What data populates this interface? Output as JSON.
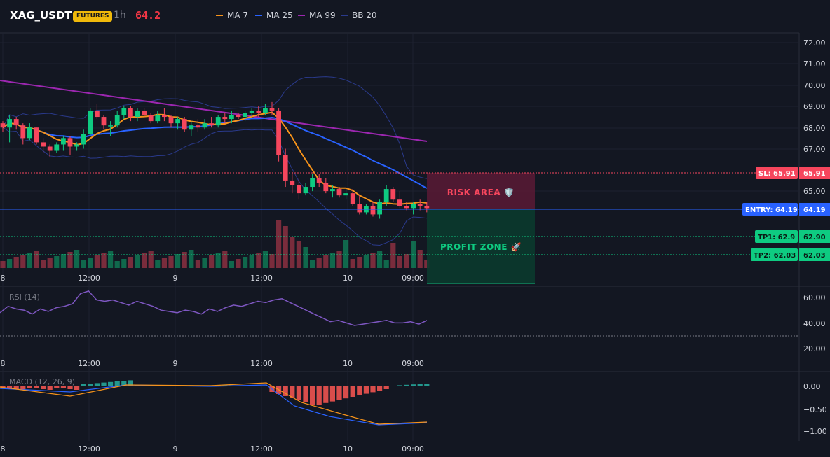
{
  "header": {
    "symbol": "XAG_USDT",
    "badge": "FUTURES",
    "timeframe": "1h",
    "last_price": "64.2",
    "legend": [
      {
        "label": "MA 7",
        "color": "#f7931a",
        "icon": "line-swatch-icon"
      },
      {
        "label": "MA 25",
        "color": "#2962ff",
        "icon": "line-swatch-icon"
      },
      {
        "label": "MA 99",
        "color": "#9c27b0",
        "icon": "line-swatch-icon"
      },
      {
        "label": "BB 20",
        "color": "#2a3a8c",
        "icon": "line-swatch-icon"
      }
    ]
  },
  "colors": {
    "up": "#0ecb81",
    "down": "#f6465d",
    "background": "#131722",
    "grid": "#1e2230",
    "sl": "#f6465d",
    "entry": "#2962ff",
    "tp": "#0ecb81"
  },
  "price_axis": {
    "ticks": [
      "72.00",
      "71.00",
      "70.00",
      "69.00",
      "68.00",
      "67.00",
      "65.00"
    ]
  },
  "time_axis": {
    "ticks": [
      "8",
      "12:00",
      "9",
      "12:00",
      "10",
      "09:00"
    ]
  },
  "levels": {
    "sl": {
      "label": "SL: 65.91",
      "value": "65.91",
      "price": 65.91
    },
    "entry": {
      "label": "ENTRY: 64.19",
      "value": "64.19",
      "price": 64.19
    },
    "tp1": {
      "label": "TP1: 62.9",
      "value": "62.90",
      "price": 62.9
    },
    "tp2": {
      "label": "TP2: 62.03",
      "value": "62.03",
      "price": 62.03
    }
  },
  "zones": {
    "risk": "RISK AREA 🛡️",
    "profit": "PROFIT ZONE 🚀"
  },
  "rsi": {
    "label": "RSI (14)",
    "ticks": [
      "60.00",
      "40.00",
      "20.00"
    ],
    "values": [
      48,
      53,
      51,
      50,
      47,
      51,
      49,
      52,
      53,
      55,
      63,
      65,
      58,
      57,
      58,
      56,
      54,
      57,
      55,
      53,
      50,
      49,
      48,
      50,
      49,
      47,
      51,
      49,
      52,
      54,
      53,
      55,
      57,
      56,
      58,
      59,
      56,
      53,
      50,
      47,
      44,
      41,
      42,
      40,
      38,
      39,
      40,
      41,
      42,
      40,
      40,
      41,
      39,
      42
    ]
  },
  "macd": {
    "label": "MACD (12, 26, 9)",
    "ticks": [
      "0.00",
      "−0.50",
      "−1.00"
    ]
  },
  "chart_data": {
    "type": "candlestick",
    "title": "XAG_USDT",
    "timeframe": "1h",
    "price_ylim": [
      64.0,
      72.2
    ],
    "x_ticks": [
      "8",
      "12:00",
      "9",
      "12:00",
      "10",
      "09:00"
    ],
    "y_ticks": [
      72.0,
      71.0,
      70.0,
      69.0,
      68.0,
      67.0,
      65.0
    ],
    "candles": [
      [
        68.2,
        68.3,
        67.8,
        68.0
      ],
      [
        68.0,
        68.6,
        67.3,
        68.4
      ],
      [
        68.4,
        68.5,
        67.9,
        68.1
      ],
      [
        68.1,
        68.2,
        67.2,
        67.5
      ],
      [
        67.5,
        68.2,
        67.4,
        68.0
      ],
      [
        68.0,
        68.0,
        67.2,
        67.3
      ],
      [
        67.3,
        67.5,
        66.8,
        67.1
      ],
      [
        67.1,
        67.2,
        66.6,
        66.9
      ],
      [
        66.9,
        67.3,
        66.8,
        67.2
      ],
      [
        67.2,
        67.6,
        66.9,
        67.5
      ],
      [
        67.5,
        67.6,
        66.7,
        67.1
      ],
      [
        67.1,
        67.3,
        66.9,
        67.2
      ],
      [
        67.2,
        67.9,
        67.0,
        67.7
      ],
      [
        67.7,
        68.9,
        67.6,
        68.8
      ],
      [
        68.8,
        69.1,
        68.4,
        68.5
      ],
      [
        68.5,
        68.6,
        67.9,
        68.1
      ],
      [
        68.1,
        68.3,
        67.6,
        68.1
      ],
      [
        68.1,
        68.8,
        68.0,
        68.6
      ],
      [
        68.6,
        69.0,
        68.4,
        68.9
      ],
      [
        68.9,
        69.0,
        68.3,
        68.5
      ],
      [
        68.5,
        68.9,
        68.3,
        68.8
      ],
      [
        68.8,
        68.9,
        68.5,
        68.6
      ],
      [
        68.6,
        68.7,
        68.2,
        68.3
      ],
      [
        68.3,
        68.8,
        68.2,
        68.6
      ],
      [
        68.6,
        68.9,
        68.3,
        68.5
      ],
      [
        68.5,
        68.6,
        68.0,
        68.2
      ],
      [
        68.2,
        68.5,
        67.9,
        68.4
      ],
      [
        68.4,
        68.5,
        67.8,
        67.9
      ],
      [
        67.9,
        68.3,
        67.6,
        68.1
      ],
      [
        68.1,
        68.4,
        67.8,
        68.0
      ],
      [
        68.0,
        68.4,
        67.9,
        68.2
      ],
      [
        68.2,
        68.5,
        68.0,
        68.1
      ],
      [
        68.1,
        68.6,
        68.0,
        68.5
      ],
      [
        68.5,
        68.7,
        68.2,
        68.4
      ],
      [
        68.4,
        68.8,
        68.2,
        68.6
      ],
      [
        68.6,
        68.7,
        68.4,
        68.5
      ],
      [
        68.5,
        68.8,
        68.3,
        68.7
      ],
      [
        68.7,
        68.9,
        68.5,
        68.8
      ],
      [
        68.8,
        69.0,
        68.5,
        68.7
      ],
      [
        68.7,
        69.1,
        68.6,
        68.9
      ],
      [
        68.9,
        69.2,
        68.6,
        68.8
      ],
      [
        68.8,
        68.9,
        66.4,
        66.7
      ],
      [
        66.7,
        67.0,
        65.2,
        65.5
      ],
      [
        65.5,
        65.9,
        64.9,
        65.3
      ],
      [
        65.3,
        65.6,
        64.6,
        64.9
      ],
      [
        64.9,
        65.4,
        64.8,
        65.2
      ],
      [
        65.2,
        65.8,
        65.0,
        65.6
      ],
      [
        65.6,
        65.8,
        65.2,
        65.4
      ],
      [
        65.4,
        65.6,
        64.9,
        65.0
      ],
      [
        65.0,
        65.3,
        64.7,
        65.1
      ],
      [
        65.1,
        65.2,
        64.7,
        64.8
      ],
      [
        64.8,
        65.1,
        64.6,
        64.9
      ],
      [
        64.9,
        65.1,
        64.3,
        64.4
      ],
      [
        64.4,
        64.8,
        63.9,
        64.0
      ],
      [
        64.0,
        64.4,
        63.9,
        64.3
      ],
      [
        64.3,
        64.5,
        63.8,
        63.9
      ],
      [
        63.9,
        64.6,
        63.7,
        64.5
      ],
      [
        64.5,
        65.3,
        64.3,
        65.1
      ],
      [
        65.1,
        65.2,
        64.5,
        64.6
      ],
      [
        64.6,
        65.0,
        64.2,
        64.3
      ],
      [
        64.3,
        64.5,
        64.1,
        64.2
      ],
      [
        64.2,
        64.5,
        63.9,
        64.4
      ],
      [
        64.4,
        64.6,
        64.1,
        64.3
      ],
      [
        64.3,
        64.5,
        64.0,
        64.2
      ]
    ]
  }
}
